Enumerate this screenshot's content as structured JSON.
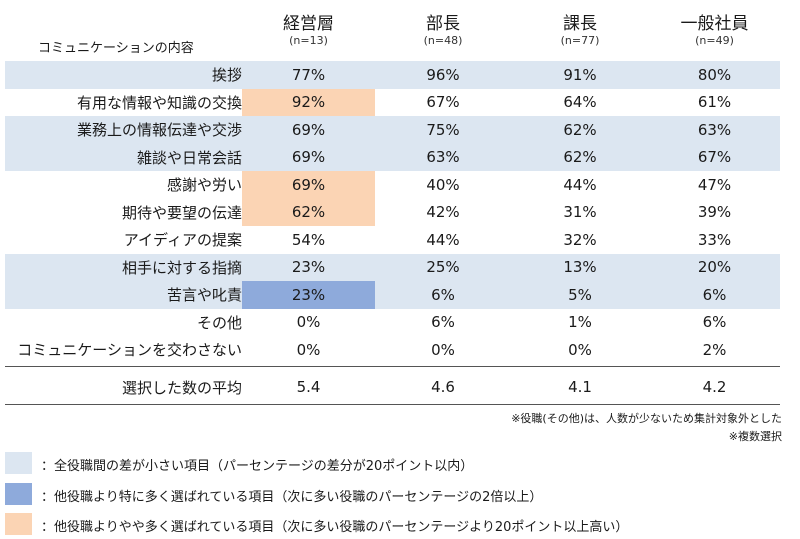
{
  "chart_data": {
    "type": "table",
    "topic_header": "コミュニケーションの内容",
    "columns": [
      {
        "name": "経営層",
        "n": "(n=13)"
      },
      {
        "name": "部長",
        "n": "(n=48)"
      },
      {
        "name": "課長",
        "n": "(n=77)"
      },
      {
        "name": "一般社員",
        "n": "(n=49)"
      }
    ],
    "rows": [
      {
        "label": "挨拶",
        "values": [
          "77%",
          "96%",
          "91%",
          "80%"
        ],
        "row_shade": "light",
        "highlight": [
          null,
          null,
          null,
          null
        ]
      },
      {
        "label": "有用な情報や知識の交換",
        "values": [
          "92%",
          "67%",
          "64%",
          "61%"
        ],
        "row_shade": null,
        "highlight": [
          "orange",
          null,
          null,
          null
        ]
      },
      {
        "label": "業務上の情報伝達や交渉",
        "values": [
          "69%",
          "75%",
          "62%",
          "63%"
        ],
        "row_shade": "light",
        "highlight": [
          null,
          null,
          null,
          null
        ]
      },
      {
        "label": "雑談や日常会話",
        "values": [
          "69%",
          "63%",
          "62%",
          "67%"
        ],
        "row_shade": "light",
        "highlight": [
          null,
          null,
          null,
          null
        ]
      },
      {
        "label": "感謝や労い",
        "values": [
          "69%",
          "40%",
          "44%",
          "47%"
        ],
        "row_shade": null,
        "highlight": [
          "orange",
          null,
          null,
          null
        ]
      },
      {
        "label": "期待や要望の伝達",
        "values": [
          "62%",
          "42%",
          "31%",
          "39%"
        ],
        "row_shade": null,
        "highlight": [
          "orange",
          null,
          null,
          null
        ]
      },
      {
        "label": "アイディアの提案",
        "values": [
          "54%",
          "44%",
          "32%",
          "33%"
        ],
        "row_shade": null,
        "highlight": [
          null,
          null,
          null,
          null
        ]
      },
      {
        "label": "相手に対する指摘",
        "values": [
          "23%",
          "25%",
          "13%",
          "20%"
        ],
        "row_shade": "light",
        "highlight": [
          null,
          null,
          null,
          null
        ]
      },
      {
        "label": "苦言や叱責",
        "values": [
          "23%",
          "6%",
          "5%",
          "6%"
        ],
        "row_shade": "light",
        "highlight": [
          "blue",
          null,
          null,
          null
        ]
      },
      {
        "label": "その他",
        "values": [
          "0%",
          "6%",
          "1%",
          "6%"
        ],
        "row_shade": null,
        "highlight": [
          null,
          null,
          null,
          null
        ]
      },
      {
        "label": "コミュニケーションを交わさない",
        "values": [
          "0%",
          "0%",
          "0%",
          "2%"
        ],
        "row_shade": null,
        "highlight": [
          null,
          null,
          null,
          null
        ]
      }
    ],
    "average": {
      "label": "選択した数の平均",
      "values": [
        "5.4",
        "4.6",
        "4.1",
        "4.2"
      ]
    }
  },
  "notes": [
    "※役職(その他)は、人数が少ないため集計対象外とした",
    "※複数選択"
  ],
  "legend": [
    {
      "key": "light",
      "text": "：全役職間の差が小さい項目（パーセンテージの差分が20ポイント以内）"
    },
    {
      "key": "blue",
      "text": "：他役職より特に多く選ばれている項目（次に多い役職のパーセンテージの2倍以上）"
    },
    {
      "key": "orange",
      "text": "：他役職よりやや多く選ばれている項目（次に多い役職のパーセンテージより20ポイント以上高い）"
    }
  ],
  "colors": {
    "light": "#dce6f1",
    "blue": "#8eaadb",
    "orange": "#fbd4b4"
  }
}
